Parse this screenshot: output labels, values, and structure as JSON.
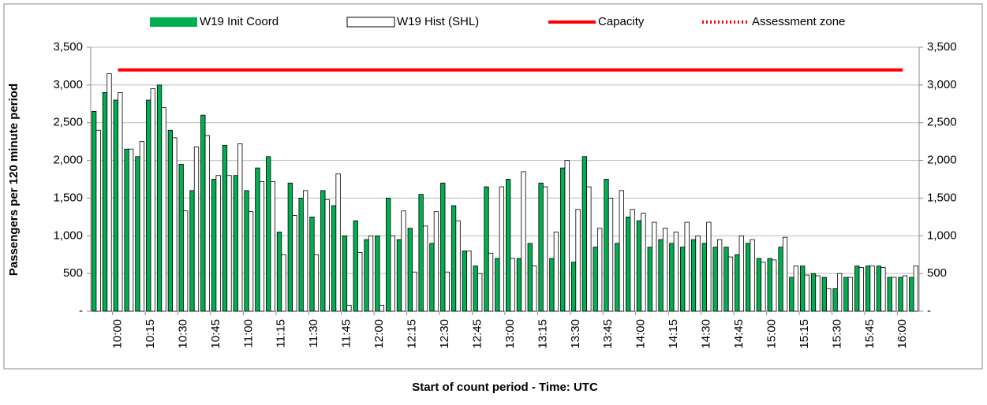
{
  "chart_data": {
    "type": "bar",
    "y_label": "Passengers per 120 minute period",
    "x_label": "Start of count period - Time: UTC",
    "categories": [
      null,
      null,
      "10:00",
      null,
      null,
      "10:15",
      null,
      null,
      "10:30",
      null,
      null,
      "10:45",
      null,
      null,
      "11:00",
      null,
      null,
      "11:15",
      null,
      null,
      "11:30",
      null,
      null,
      "11:45",
      null,
      null,
      "12:00",
      null,
      null,
      "12:15",
      null,
      null,
      "12:30",
      null,
      null,
      "12:45",
      null,
      null,
      "13:00",
      null,
      null,
      "13:15",
      null,
      null,
      "13:30",
      null,
      null,
      "13:45",
      null,
      null,
      "14:00",
      null,
      null,
      "14:15",
      null,
      null,
      "14:30",
      null,
      null,
      "14:45",
      null,
      null,
      "15:00",
      null,
      null,
      "15:15",
      null,
      null,
      "15:30",
      null,
      null,
      "15:45",
      null,
      null,
      "16:00",
      null
    ],
    "series": [
      {
        "name": "W19 Init Coord",
        "type": "bar",
        "color": "#00b050",
        "values": [
          2650,
          2900,
          2800,
          2150,
          2050,
          2800,
          3000,
          2400,
          1950,
          1600,
          2600,
          1750,
          2200,
          1800,
          1600,
          1900,
          2050,
          1050,
          1700,
          1500,
          1250,
          1600,
          1400,
          1000,
          1200,
          950,
          1000,
          1500,
          950,
          1100,
          1550,
          900,
          1700,
          1400,
          800,
          600,
          1650,
          700,
          1750,
          700,
          900,
          1700,
          700,
          1900,
          650,
          2050,
          850,
          1750,
          900,
          1250,
          1200,
          850,
          950,
          900,
          850,
          950,
          900,
          850,
          850,
          750,
          900,
          700,
          700,
          850,
          450,
          600,
          500,
          450,
          300,
          450,
          600,
          600,
          600,
          450,
          450,
          450
        ]
      },
      {
        "name": "W19 Hist (SHL)",
        "type": "bar",
        "color": "#ffffff",
        "values": [
          2400,
          3150,
          2900,
          2150,
          2250,
          2950,
          2700,
          2300,
          1330,
          2180,
          2330,
          1800,
          1800,
          2220,
          1320,
          1720,
          1720,
          750,
          1270,
          1600,
          750,
          1480,
          1820,
          80,
          780,
          1000,
          80,
          1000,
          1330,
          520,
          1130,
          1320,
          520,
          1200,
          800,
          500,
          770,
          1650,
          700,
          1850,
          600,
          1650,
          1050,
          2000,
          1350,
          1650,
          1100,
          1500,
          1600,
          1350,
          1300,
          1180,
          1100,
          1050,
          1180,
          1000,
          1180,
          950,
          720,
          1000,
          950,
          650,
          680,
          980,
          600,
          480,
          470,
          300,
          500,
          450,
          580,
          600,
          580,
          450,
          470,
          600
        ]
      },
      {
        "name": "Capacity",
        "type": "line",
        "color": "#ff0000",
        "values": [
          null,
          null,
          3200,
          3200,
          3200,
          3200,
          3200,
          3200,
          3200,
          3200,
          3200,
          3200,
          3200,
          3200,
          3200,
          3200,
          3200,
          3200,
          3200,
          3200,
          3200,
          3200,
          3200,
          3200,
          3200,
          3200,
          3200,
          3200,
          3200,
          3200,
          3200,
          3200,
          3200,
          3200,
          3200,
          3200,
          3200,
          3200,
          3200,
          3200,
          3200,
          3200,
          3200,
          3200,
          3200,
          3200,
          3200,
          3200,
          3200,
          3200,
          3200,
          3200,
          3200,
          3200,
          3200,
          3200,
          3200,
          3200,
          3200,
          3200,
          3200,
          3200,
          3200,
          3200,
          3200,
          3200,
          3200,
          3200,
          3200,
          3200,
          3200,
          3200,
          3200,
          3200,
          3200,
          null
        ]
      },
      {
        "name": "Assessment zone",
        "type": "line",
        "dotted": true,
        "color": "#ff0000",
        "values": [
          null,
          null,
          null,
          null,
          null,
          null,
          null,
          null,
          null,
          null,
          null,
          null,
          null,
          null,
          null,
          null,
          null,
          null,
          null,
          null,
          null,
          null,
          null,
          null,
          null,
          null,
          null,
          null,
          null,
          null,
          null,
          null,
          null,
          null,
          null,
          null,
          null,
          null,
          null,
          null,
          null,
          null,
          null,
          null,
          null,
          null,
          null,
          null,
          null,
          null,
          null,
          null,
          null,
          null,
          null,
          null,
          null,
          null,
          null,
          null,
          null,
          null,
          null,
          null,
          null,
          null,
          null,
          null,
          null,
          null,
          null,
          null,
          null,
          null,
          null,
          null
        ]
      }
    ],
    "ylim": [
      0,
      3500
    ],
    "yticks": [
      {
        "value": 0,
        "label": "-"
      },
      500,
      {
        "value": 1000,
        "label": "1,000"
      },
      {
        "value": 1500,
        "label": "1,500"
      },
      {
        "value": 2000,
        "label": "2,000"
      },
      {
        "value": 2500,
        "label": "2,500"
      },
      {
        "value": 3000,
        "label": "3,000"
      },
      {
        "value": 3500,
        "label": "3,500"
      }
    ],
    "y2lim": [
      0,
      3500
    ],
    "y2ticks": [
      {
        "value": 0,
        "label": "-"
      },
      500,
      {
        "value": 1000,
        "label": "1,000"
      },
      {
        "value": 1500,
        "label": "1,500"
      },
      {
        "value": 2000,
        "label": "2,000"
      },
      {
        "value": 2500,
        "label": "2,500"
      },
      {
        "value": 3000,
        "label": "3,000"
      },
      {
        "value": 3500,
        "label": "3,500"
      }
    ],
    "grid": true,
    "legend": "top"
  }
}
